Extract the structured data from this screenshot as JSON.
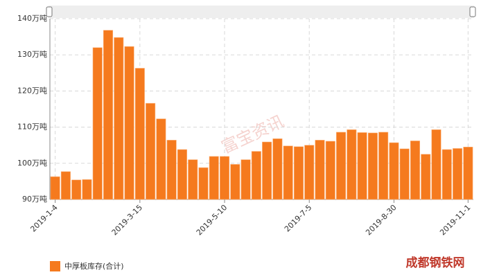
{
  "chart_data": {
    "type": "bar",
    "categories": [
      "2019-1-4",
      null,
      null,
      null,
      null,
      null,
      null,
      null,
      "2019-3-15",
      null,
      null,
      null,
      null,
      null,
      null,
      null,
      "2019-5-10",
      null,
      null,
      null,
      null,
      null,
      null,
      null,
      "2019-7-5",
      null,
      null,
      null,
      null,
      null,
      null,
      null,
      "2019-8-30",
      null,
      null,
      null,
      null,
      null,
      null,
      "2019-11-1"
    ],
    "series": [
      {
        "name": "中厚板库存(合计)",
        "color": "#f57a1e",
        "values": [
          96.3,
          97.7,
          95.4,
          95.5,
          132,
          136.8,
          134.8,
          132.3,
          126.3,
          116.6,
          112.3,
          106.4,
          103.8,
          101,
          98.8,
          101.9,
          101.9,
          99.7,
          101,
          103.3,
          105.9,
          106.8,
          104.8,
          104.6,
          105,
          106.4,
          106.1,
          108.6,
          109.3,
          108.5,
          108.4,
          108.6,
          105.7,
          104,
          106.2,
          102.5,
          109.3,
          103.8,
          104.1,
          104.5
        ]
      }
    ],
    "ylim": [
      90,
      140
    ],
    "yticks": [
      {
        "value": 90,
        "label": "90万吨"
      },
      {
        "value": 100,
        "label": "100万吨"
      },
      {
        "value": 110,
        "label": "110万吨"
      },
      {
        "value": 120,
        "label": "120万吨"
      },
      {
        "value": 130,
        "label": "130万吨"
      },
      {
        "value": 140,
        "label": "140万吨"
      }
    ],
    "grid": true,
    "watermark": "富宝资讯",
    "logo": "成都钢铁网"
  }
}
